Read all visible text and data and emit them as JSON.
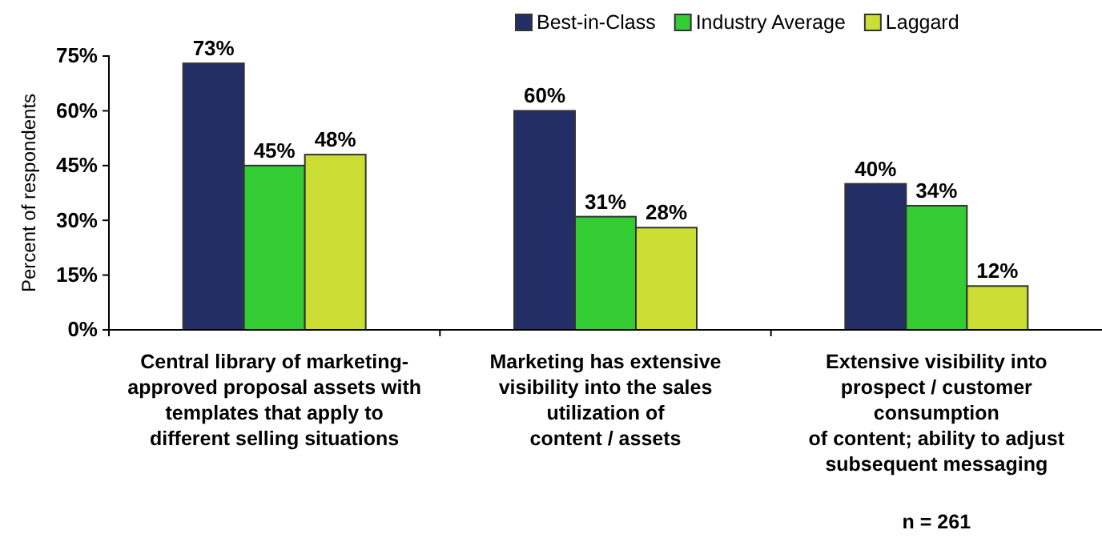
{
  "chart_data": {
    "type": "bar",
    "ylabel": "Percent of respondents",
    "categories": [
      "Central library of marketing-\napproved proposal assets with\ntemplates that apply to\ndifferent selling situations",
      "Marketing has extensive\nvisibility into the sales\nutilization of\ncontent / assets",
      "Extensive visibility into\nprospect / customer\nconsumption\nof content; ability to adjust\nsubsequent messaging"
    ],
    "series": [
      {
        "name": "Best-in-Class",
        "color": "#242e66",
        "values": [
          73,
          60,
          40
        ],
        "value_labels": [
          "73%",
          "60%",
          "40%"
        ]
      },
      {
        "name": "Industry Average",
        "color": "#33cc33",
        "values": [
          45,
          31,
          34
        ],
        "value_labels": [
          "45%",
          "31%",
          "34%"
        ]
      },
      {
        "name": "Laggard",
        "color": "#ccdd33",
        "values": [
          48,
          28,
          12
        ],
        "value_labels": [
          "48%",
          "28%",
          "12%"
        ]
      }
    ],
    "ylim": [
      0,
      75
    ],
    "yticks": [
      {
        "value": 0,
        "label": "0%"
      },
      {
        "value": 15,
        "label": "15%"
      },
      {
        "value": 30,
        "label": "30%"
      },
      {
        "value": 45,
        "label": "45%"
      },
      {
        "value": 60,
        "label": "60%"
      },
      {
        "value": 75,
        "label": "75%"
      }
    ],
    "legend": "top right",
    "grid": false,
    "annotations": [
      "n = 261"
    ]
  }
}
